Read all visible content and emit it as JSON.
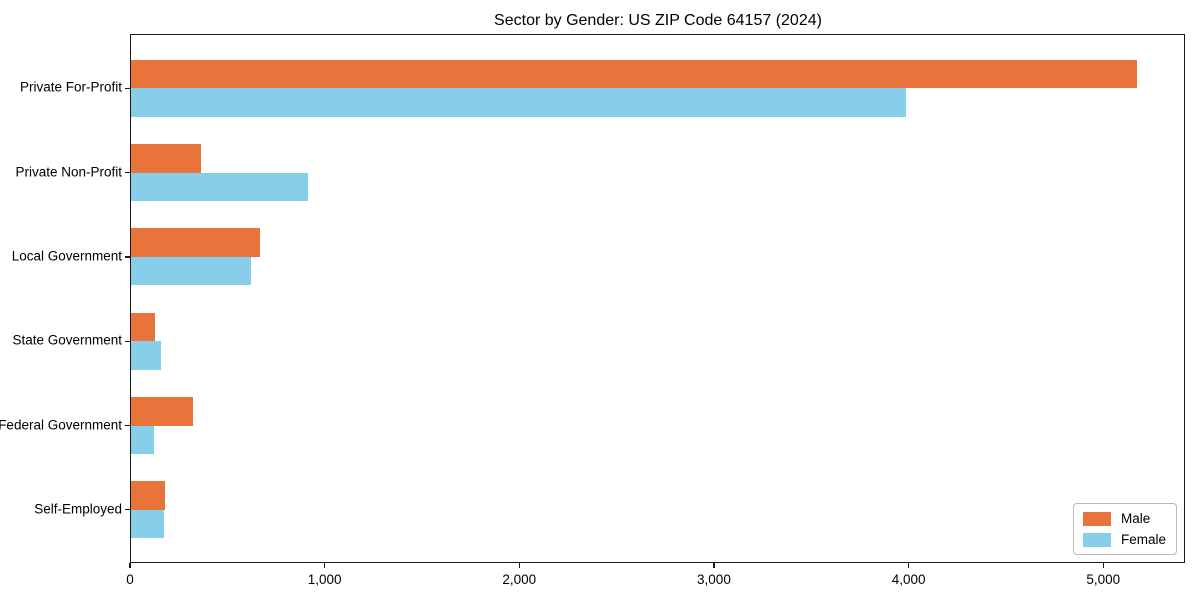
{
  "chart_data": {
    "type": "bar",
    "orientation": "horizontal",
    "title": "Sector by Gender: US ZIP Code 64157 (2024)",
    "categories": [
      "Private For-Profit",
      "Private Non-Profit",
      "Local Government",
      "State Government",
      "Federal Government",
      "Self-Employed"
    ],
    "series": [
      {
        "name": "Male",
        "color": "#E8743B",
        "values": [
          5170,
          360,
          665,
          125,
          320,
          175
        ]
      },
      {
        "name": "Female",
        "color": "#87CEEB",
        "values": [
          3980,
          910,
          615,
          155,
          120,
          170
        ]
      }
    ],
    "xlabel": "",
    "ylabel": "",
    "xlim": [
      0,
      5420
    ],
    "x_ticks": [
      0,
      1000,
      2000,
      3000,
      4000,
      5000
    ],
    "x_tick_labels": [
      "0",
      "1,000",
      "2,000",
      "3,000",
      "4,000",
      "5,000"
    ],
    "legend_position": "lower right",
    "grid": false,
    "colors": {
      "axis": "#1a1a1a",
      "background": "#ffffff"
    }
  }
}
